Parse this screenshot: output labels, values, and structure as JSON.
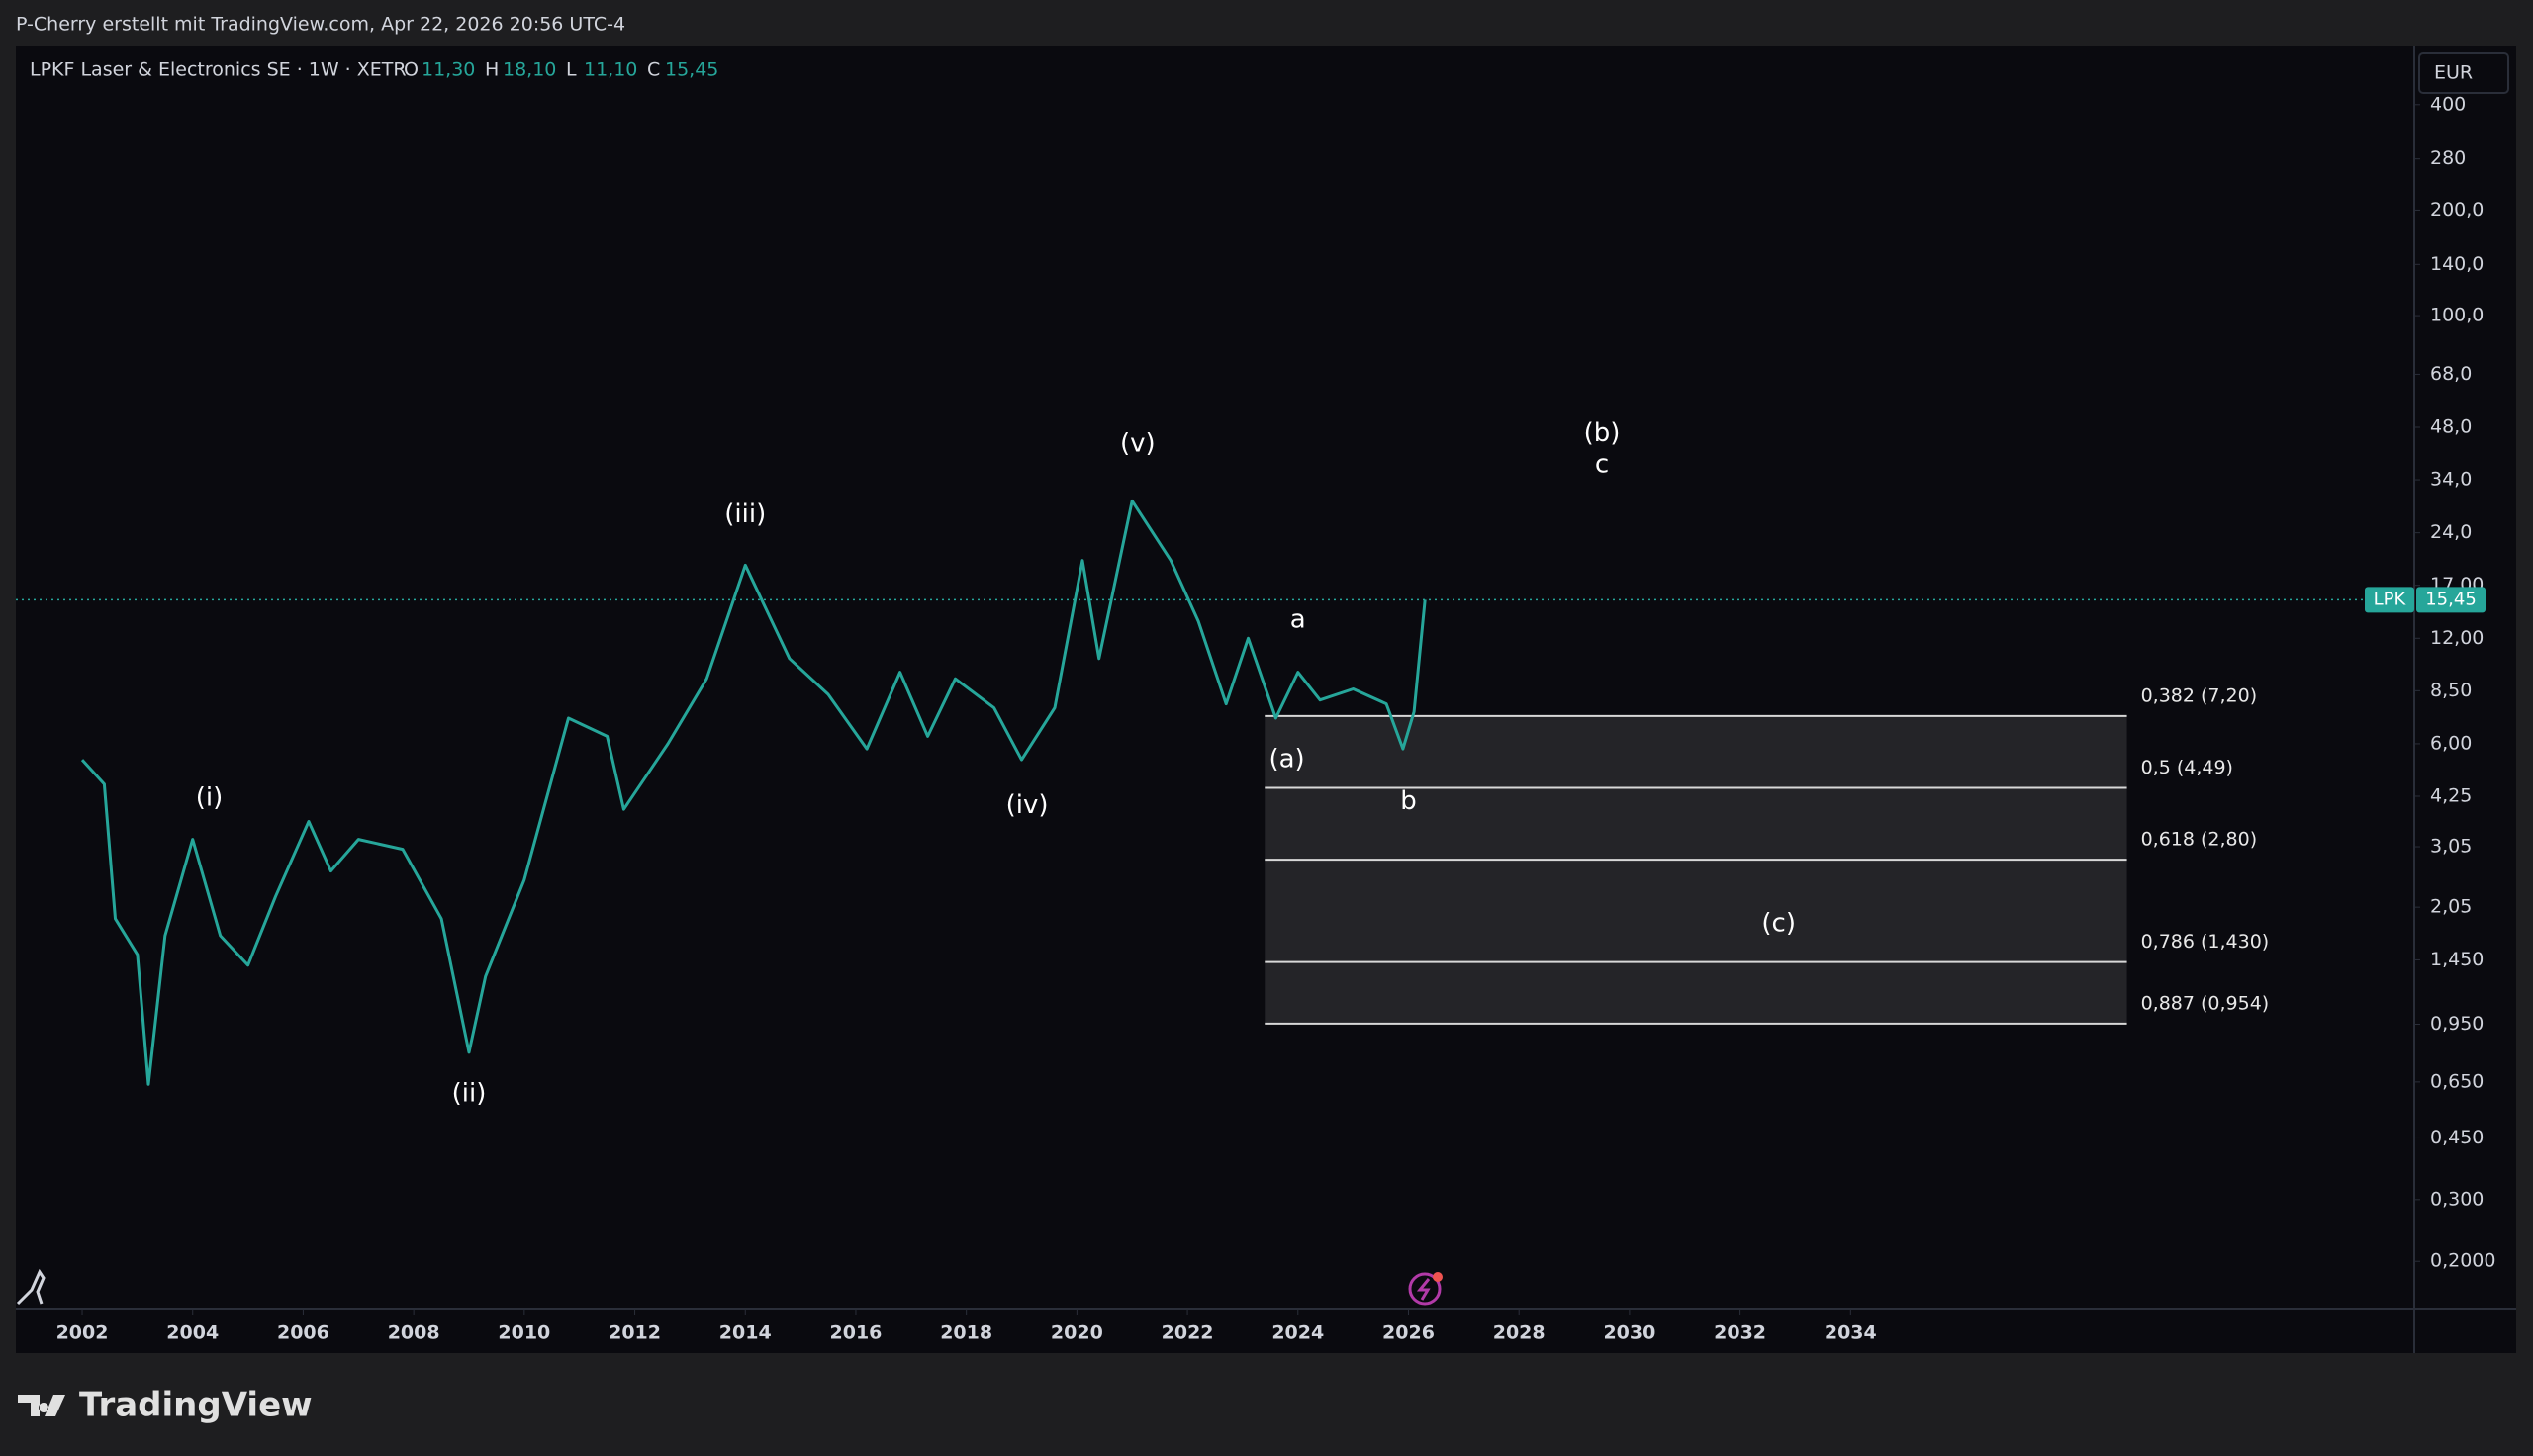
{
  "chart_data": {
    "type": "line",
    "attribution": "P-Cherry erstellt mit TradingView.com, Apr 22, 2026 20:56 UTC-4",
    "title": "LPKF Laser & Electronics SE · 1W · XETR",
    "ohlc": [
      {
        "key": "O",
        "label": "11,30"
      },
      {
        "key": "H",
        "label": "18,10"
      },
      {
        "key": "L",
        "label": "11,10"
      },
      {
        "key": "C",
        "label": "15,45"
      }
    ],
    "currency": "EUR",
    "last": {
      "symbol": "LPK",
      "value": 15.45,
      "label": "15,45"
    },
    "log_scale": true,
    "xlim": [
      2000.8,
      2044.2
    ],
    "xticks": [
      2002,
      2004,
      2006,
      2008,
      2010,
      2012,
      2014,
      2016,
      2018,
      2020,
      2022,
      2024,
      2026,
      2028,
      2030,
      2032,
      2034
    ],
    "ylim": [
      0.1466,
      590
    ],
    "yticks": [
      400,
      280,
      {
        "value": 200,
        "label": "200,0"
      },
      {
        "value": 140,
        "label": "140,0"
      },
      {
        "value": 100,
        "label": "100,0"
      },
      {
        "value": 68,
        "label": "68,0"
      },
      {
        "value": 48,
        "label": "48,0"
      },
      {
        "value": 34,
        "label": "34,0"
      },
      {
        "value": 24,
        "label": "24,0"
      },
      {
        "value": 17,
        "label": "17,00"
      },
      {
        "value": 12,
        "label": "12,00"
      },
      {
        "value": 8.5,
        "label": "8,50"
      },
      {
        "value": 6,
        "label": "6,00"
      },
      {
        "value": 4.25,
        "label": "4,25"
      },
      {
        "value": 3.05,
        "label": "3,05"
      },
      {
        "value": 2.05,
        "label": "2,05"
      },
      {
        "value": 1.45,
        "label": "1,450"
      },
      {
        "value": 0.95,
        "label": "0,950"
      },
      {
        "value": 0.65,
        "label": "0,650"
      },
      {
        "value": 0.45,
        "label": "0,450"
      },
      {
        "value": 0.3,
        "label": "0,300"
      },
      {
        "value": 0.2,
        "label": "0,2000"
      }
    ],
    "series": [
      {
        "name": "LPK",
        "color": "#26a69a",
        "x": [
          2002.0,
          2002.4,
          2002.6,
          2003.0,
          2003.2,
          2003.5,
          2004.0,
          2004.5,
          2005.0,
          2005.5,
          2006.1,
          2006.5,
          2007.0,
          2007.8,
          2008.5,
          2009.0,
          2009.3,
          2010.0,
          2010.8,
          2011.5,
          2011.8,
          2012.6,
          2013.3,
          2014.0,
          2014.8,
          2015.5,
          2016.2,
          2016.8,
          2017.3,
          2017.8,
          2018.5,
          2019.0,
          2019.6,
          2020.1,
          2020.4,
          2021.0,
          2021.7,
          2022.2,
          2022.7,
          2023.1,
          2023.6,
          2024.0,
          2024.4,
          2025.0,
          2025.6,
          2025.9,
          2026.1,
          2026.3
        ],
        "values": [
          5.4,
          4.6,
          1.9,
          1.5,
          0.64,
          1.7,
          3.2,
          1.7,
          1.4,
          2.2,
          3.6,
          2.6,
          3.2,
          3.0,
          1.9,
          0.79,
          1.3,
          2.45,
          7.1,
          6.3,
          3.9,
          6.0,
          9.2,
          19.4,
          10.5,
          8.3,
          5.8,
          9.6,
          6.3,
          9.2,
          7.6,
          5.4,
          7.6,
          20,
          10.5,
          29.6,
          20,
          13.4,
          7.8,
          12,
          7.1,
          9.6,
          8.0,
          8.6,
          7.8,
          5.8,
          7.4,
          15.45
        ]
      }
    ],
    "fib": {
      "start": 2023.4,
      "end": 2039.0,
      "levels": [
        {
          "value": 7.2,
          "label": "0,382 (7,20)"
        },
        {
          "value": 4.49,
          "label": "0,5 (4,49)"
        },
        {
          "value": 2.8,
          "label": "0,618 (2,80)"
        },
        {
          "value": 1.43,
          "label": "0,786 (1,430)"
        },
        {
          "value": 0.954,
          "label": "0,887 (0,954)"
        }
      ]
    },
    "annotations": [
      {
        "text": "(i)",
        "x": 2004.3,
        "y": 4.2
      },
      {
        "text": "(ii)",
        "x": 2009.0,
        "y": 0.6
      },
      {
        "text": "(iii)",
        "x": 2014.0,
        "y": 27
      },
      {
        "text": "(iv)",
        "x": 2019.1,
        "y": 4.0
      },
      {
        "text": "(v)",
        "x": 2021.1,
        "y": 43
      },
      {
        "text": "(b)",
        "x": 2029.5,
        "y": 46
      },
      {
        "text": "c",
        "x": 2029.5,
        "y": 37.5
      },
      {
        "text": "a",
        "x": 2024.0,
        "y": 13.5
      },
      {
        "text": "(a)",
        "x": 2023.8,
        "y": 5.4
      },
      {
        "text": "b",
        "x": 2026.0,
        "y": 4.1
      },
      {
        "text": "(c)",
        "x": 2032.7,
        "y": 1.84
      }
    ],
    "brand": "TradingView"
  }
}
